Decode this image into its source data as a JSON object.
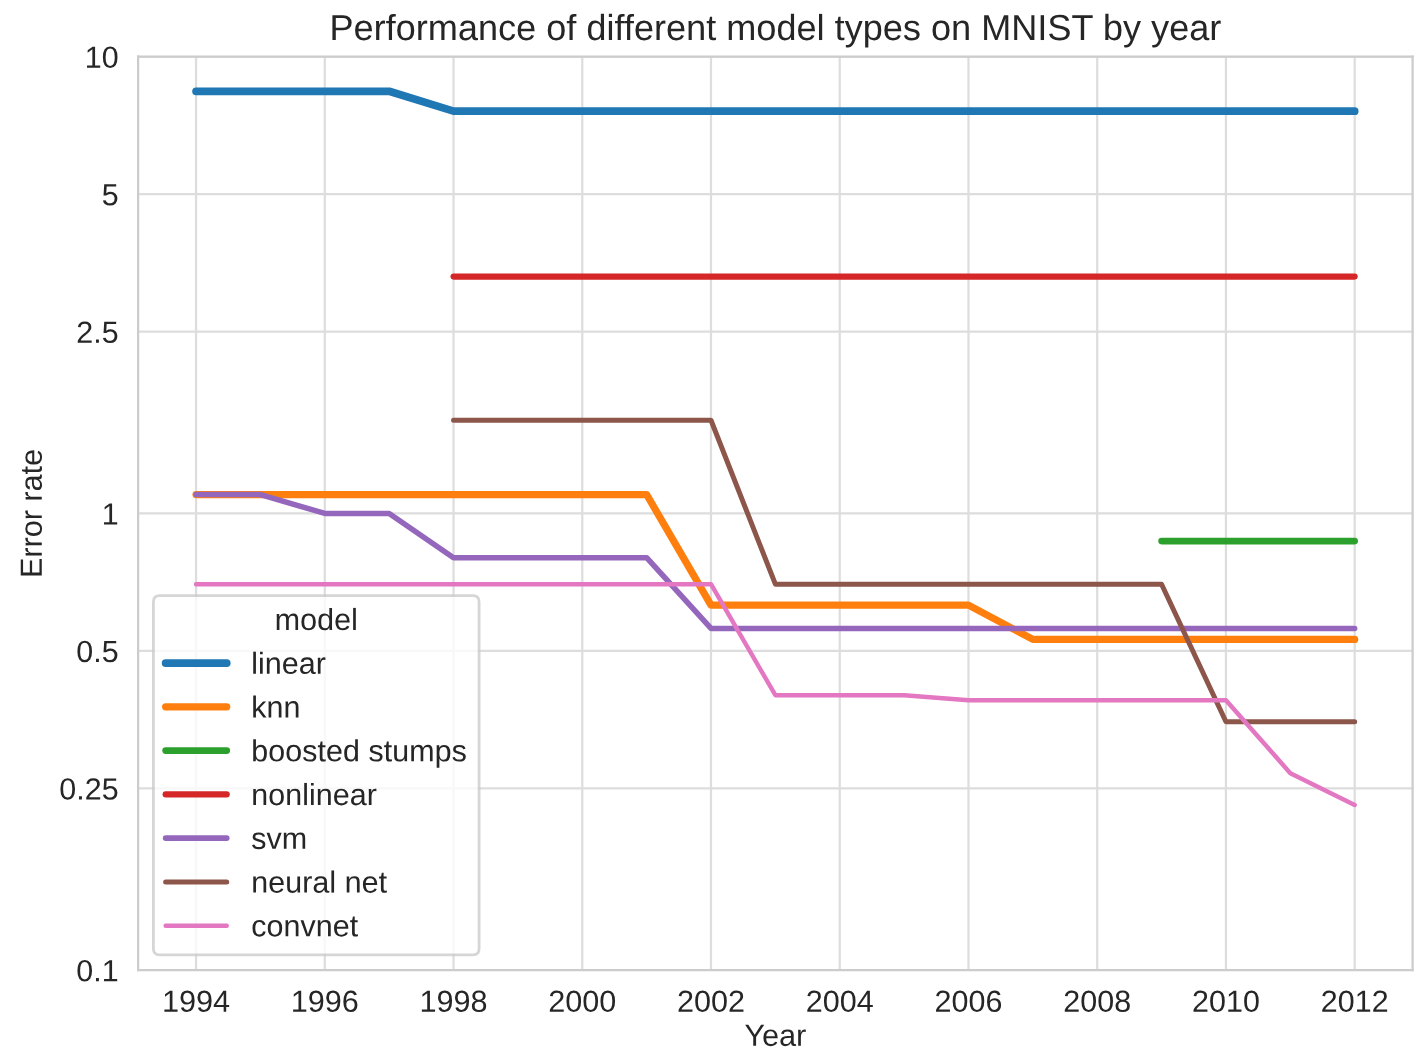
{
  "chart_data": {
    "type": "line",
    "title": "Performance of different model types on MNIST by year",
    "xlabel": "Year",
    "ylabel": "Error rate",
    "legend_title": "model",
    "legend": "bottom left",
    "grid": true,
    "log": "y",
    "xlim": [
      1993.1,
      2012.9
    ],
    "xticks": [
      1994,
      1996,
      1998,
      2000,
      2002,
      2004,
      2006,
      2008,
      2010,
      2012
    ],
    "ylim": [
      0.1,
      10
    ],
    "yticks": [
      0.1,
      0.25,
      0.5,
      1,
      2.5,
      5,
      10
    ],
    "series": [
      {
        "name": "linear",
        "color": "#1f77b4",
        "x": [
          1994,
          1995,
          1996,
          1997,
          1998,
          2012
        ],
        "values": [
          8.4,
          8.4,
          8.4,
          8.4,
          7.6,
          7.6
        ]
      },
      {
        "name": "knn",
        "color": "#ff7f0e",
        "x": [
          1994,
          2001,
          2002,
          2006,
          2007,
          2012
        ],
        "values": [
          1.1,
          1.1,
          0.63,
          0.63,
          0.53,
          0.53
        ]
      },
      {
        "name": "boosted stumps",
        "color": "#2ca02c",
        "x": [
          2009,
          2012
        ],
        "values": [
          0.87,
          0.87
        ]
      },
      {
        "name": "nonlinear",
        "color": "#d62728",
        "x": [
          1998,
          2012
        ],
        "values": [
          3.3,
          3.3
        ]
      },
      {
        "name": "svm",
        "color": "#9467bd",
        "x": [
          1994,
          1995,
          1996,
          1997,
          1998,
          2001,
          2002,
          2012
        ],
        "values": [
          1.1,
          1.1,
          1.0,
          1.0,
          0.8,
          0.8,
          0.56,
          0.56
        ]
      },
      {
        "name": "neural net",
        "color": "#8c564b",
        "x": [
          1998,
          2002,
          2003,
          2009,
          2010,
          2012
        ],
        "values": [
          1.6,
          1.6,
          0.7,
          0.7,
          0.35,
          0.35
        ]
      },
      {
        "name": "convnet",
        "color": "#e377c2",
        "x": [
          1994,
          2002,
          2003,
          2005,
          2006,
          2010,
          2011,
          2012
        ],
        "values": [
          0.7,
          0.7,
          0.4,
          0.4,
          0.39,
          0.39,
          0.27,
          0.23
        ]
      }
    ]
  }
}
